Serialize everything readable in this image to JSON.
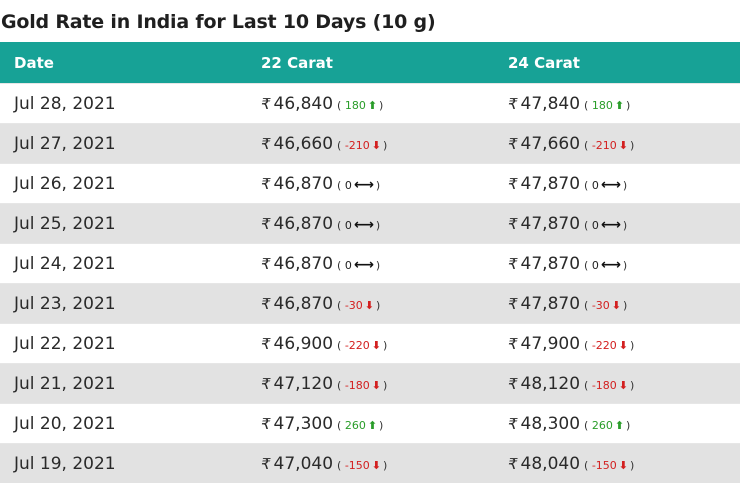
{
  "title": "Gold Rate in India for Last 10 Days (10 g)",
  "currency_symbol": "₹",
  "headers": [
    "Date",
    "22 Carat",
    "24 Carat"
  ],
  "colors": {
    "header_bg": "#17a296",
    "up": "#2a9d2a",
    "down": "#d32020",
    "stripe": "#e2e2e2"
  },
  "rows": [
    {
      "date": "Jul 28, 2021",
      "k22": "46,840",
      "k22_change": "180",
      "k24": "47,840",
      "k24_change": "180",
      "dir": "up"
    },
    {
      "date": "Jul 27, 2021",
      "k22": "46,660",
      "k22_change": "-210",
      "k24": "47,660",
      "k24_change": "-210",
      "dir": "down"
    },
    {
      "date": "Jul 26, 2021",
      "k22": "46,870",
      "k22_change": "0",
      "k24": "47,870",
      "k24_change": "0",
      "dir": "flat"
    },
    {
      "date": "Jul 25, 2021",
      "k22": "46,870",
      "k22_change": "0",
      "k24": "47,870",
      "k24_change": "0",
      "dir": "flat"
    },
    {
      "date": "Jul 24, 2021",
      "k22": "46,870",
      "k22_change": "0",
      "k24": "47,870",
      "k24_change": "0",
      "dir": "flat"
    },
    {
      "date": "Jul 23, 2021",
      "k22": "46,870",
      "k22_change": "-30",
      "k24": "47,870",
      "k24_change": "-30",
      "dir": "down"
    },
    {
      "date": "Jul 22, 2021",
      "k22": "46,900",
      "k22_change": "-220",
      "k24": "47,900",
      "k24_change": "-220",
      "dir": "down"
    },
    {
      "date": "Jul 21, 2021",
      "k22": "47,120",
      "k22_change": "-180",
      "k24": "48,120",
      "k24_change": "-180",
      "dir": "down"
    },
    {
      "date": "Jul 20, 2021",
      "k22": "47,300",
      "k22_change": "260",
      "k24": "48,300",
      "k24_change": "260",
      "dir": "up"
    },
    {
      "date": "Jul 19, 2021",
      "k22": "47,040",
      "k22_change": "-150",
      "k24": "48,040",
      "k24_change": "-150",
      "dir": "down"
    }
  ]
}
